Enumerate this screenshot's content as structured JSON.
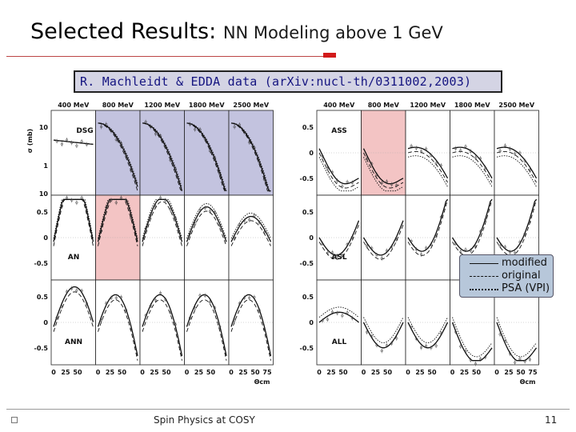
{
  "slide": {
    "title_main": "Selected Results: ",
    "title_sub": "NN Modeling above 1 GeV",
    "reference": "R. Machleidt & EDDA data (arXiv:nucl-th/0311002,2003)",
    "footer_text": "Spin Physics at COSY",
    "page_number": "11",
    "accent_color": "#d21a1a"
  },
  "legend": {
    "entries": [
      {
        "label": "modified",
        "style": "solid"
      },
      {
        "label": "original",
        "style": "dashed"
      },
      {
        "label": "PSA (VPI)",
        "style": "dotted"
      }
    ]
  },
  "chart_data": {
    "type": "line",
    "energies": [
      "400 MeV",
      "800 MeV",
      "1200 MeV",
      "1800 MeV",
      "2500 MeV"
    ],
    "x_ticks": [
      "0",
      "25",
      "50",
      "75"
    ],
    "x_last_tick": "75",
    "xlabel": "Θcm",
    "ylabel": "σ (mb)",
    "left_panels": [
      {
        "label": "DSG",
        "yticks": [
          "10",
          "1",
          "10"
        ],
        "highlight": [
          1,
          2,
          3,
          4
        ],
        "highlight_color": "#c3c3df"
      },
      {
        "label": "AN",
        "yticks": [
          "0.5",
          "0",
          "-0.5"
        ],
        "highlight": [
          1
        ],
        "highlight_color": "#f3c4c4"
      },
      {
        "label": "ANN",
        "yticks": [
          "0.5",
          "0",
          "-0.5"
        ],
        "highlight": [],
        "highlight_color": ""
      }
    ],
    "right_panels": [
      {
        "label": "ASS",
        "yticks": [
          "0.5",
          "0",
          "-0.5"
        ],
        "highlight": [
          1
        ],
        "highlight_color": "#f3c4c4"
      },
      {
        "label": "ASL",
        "yticks": [
          "0.5",
          "0",
          "-0.5"
        ],
        "highlight": [],
        "highlight_color": ""
      },
      {
        "label": "ALL",
        "yticks": [
          "0.5",
          "0",
          "-0.5"
        ],
        "highlight": [],
        "highlight_color": ""
      }
    ]
  }
}
